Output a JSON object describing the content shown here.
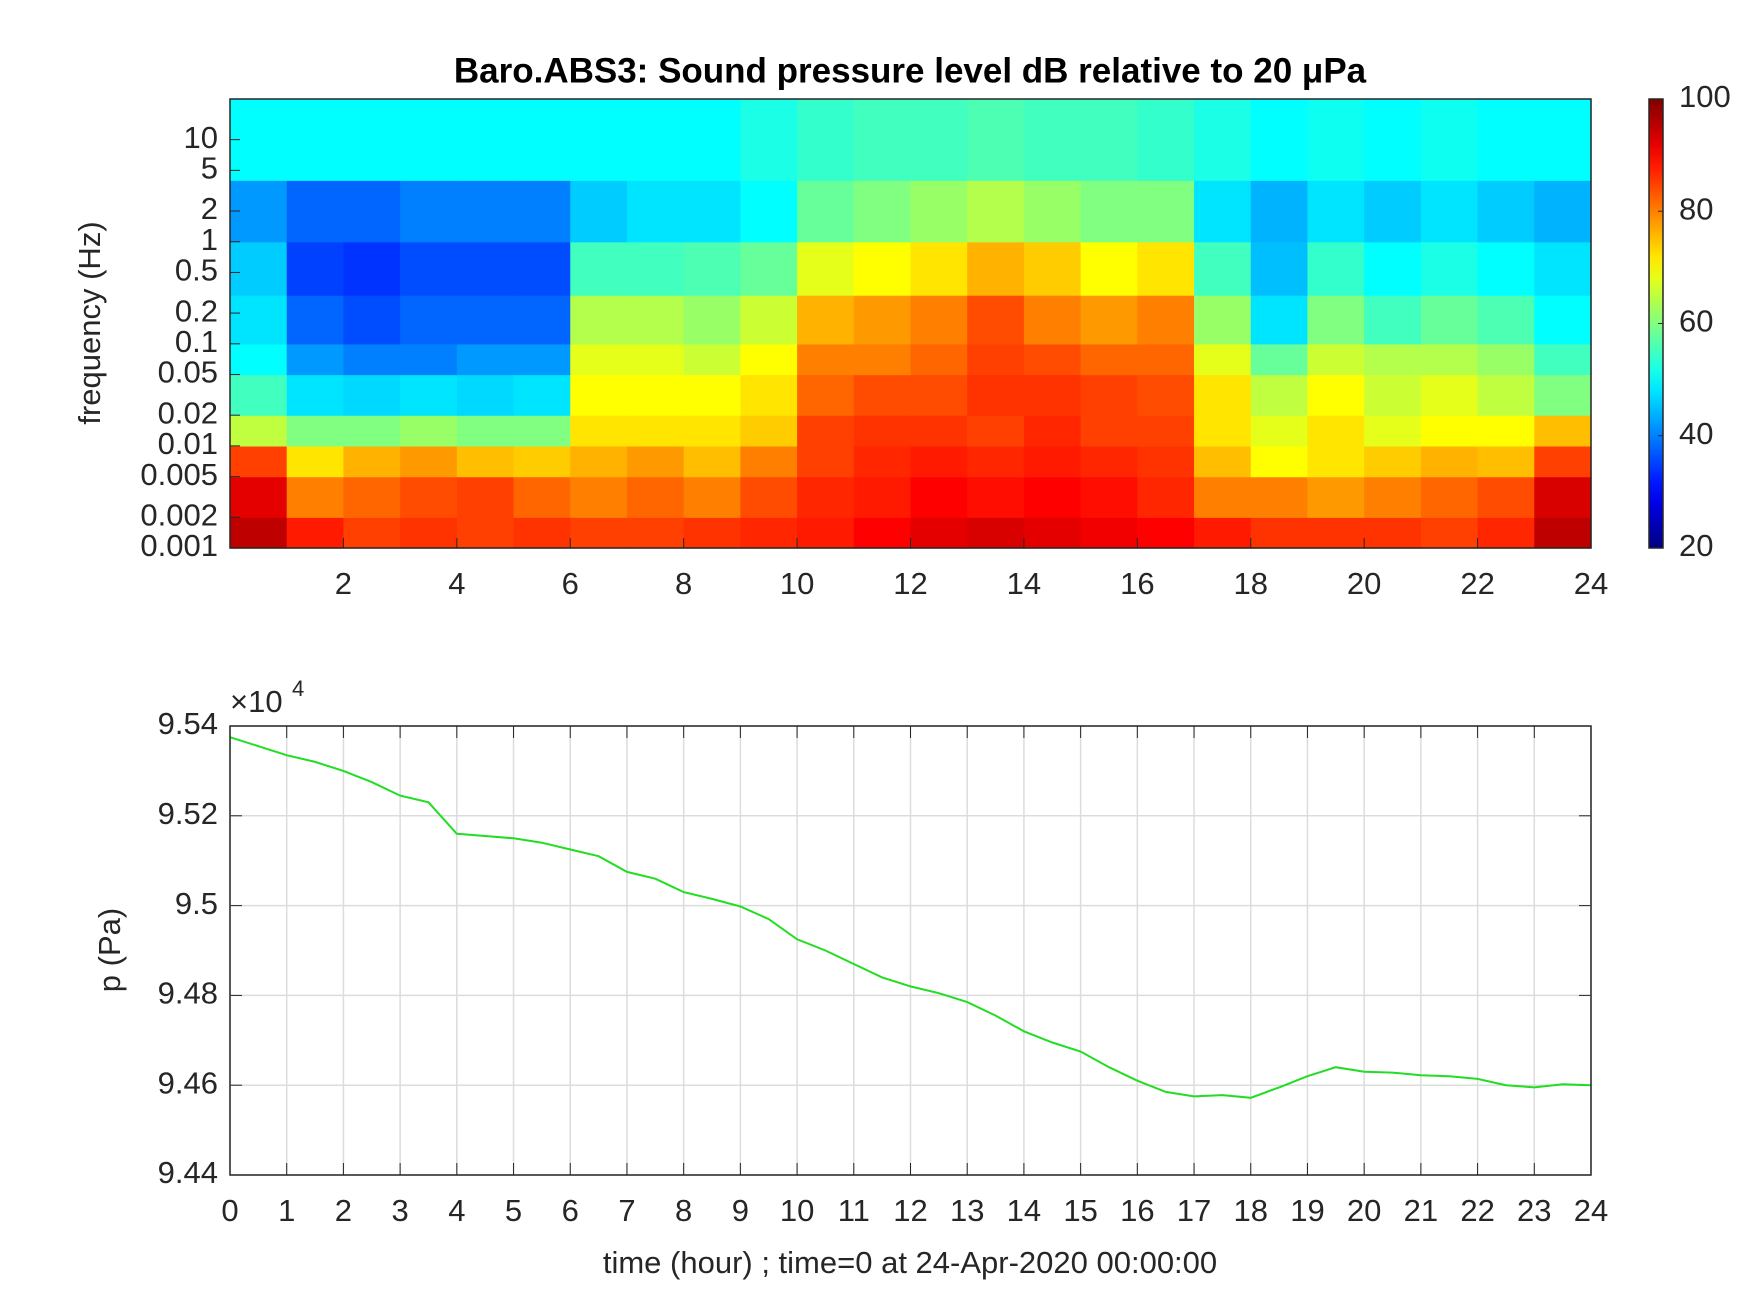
{
  "chart_data": [
    {
      "type": "heatmap",
      "title": "Baro.ABS3: Sound pressure level dB relative to 20 μPa",
      "y_label": "frequency (Hz)",
      "y_log": true,
      "colormap": "jet",
      "xlim": [
        0,
        24
      ],
      "ylim": [
        0.001,
        25
      ],
      "xticks": [
        2,
        4,
        6,
        8,
        10,
        12,
        14,
        16,
        18,
        20,
        22,
        24
      ],
      "yticks": [
        0.001,
        0.002,
        0.005,
        0.01,
        0.02,
        0.05,
        0.1,
        0.2,
        0.5,
        1,
        2,
        5,
        10
      ],
      "x_edges": [
        0,
        1,
        2,
        3,
        4,
        5,
        6,
        7,
        8,
        9,
        10,
        11,
        12,
        13,
        14,
        15,
        16,
        17,
        18,
        19,
        20,
        21,
        22,
        23,
        24
      ],
      "y_edges": [
        0.001,
        0.002,
        0.005,
        0.01,
        0.02,
        0.05,
        0.1,
        0.3,
        1,
        4,
        25
      ],
      "z": [
        [
          95,
          88,
          85,
          86,
          85,
          86,
          85,
          85,
          86,
          87,
          88,
          90,
          92,
          93,
          92,
          91,
          90,
          88,
          86,
          86,
          86,
          85,
          87,
          95
        ],
        [
          92,
          80,
          82,
          84,
          85,
          82,
          80,
          82,
          80,
          84,
          87,
          88,
          90,
          89,
          90,
          89,
          87,
          80,
          80,
          78,
          80,
          82,
          84,
          93
        ],
        [
          85,
          72,
          76,
          78,
          75,
          74,
          76,
          78,
          75,
          80,
          85,
          87,
          88,
          87,
          88,
          87,
          86,
          75,
          70,
          72,
          74,
          76,
          75,
          85
        ],
        [
          65,
          60,
          60,
          62,
          60,
          60,
          72,
          72,
          72,
          74,
          85,
          86,
          86,
          85,
          87,
          85,
          85,
          72,
          68,
          72,
          68,
          70,
          70,
          75
        ],
        [
          55,
          48,
          47,
          48,
          47,
          48,
          70,
          70,
          70,
          72,
          82,
          84,
          84,
          86,
          86,
          85,
          84,
          72,
          65,
          70,
          66,
          68,
          65,
          60
        ],
        [
          50,
          42,
          40,
          40,
          42,
          42,
          68,
          68,
          66,
          70,
          80,
          80,
          82,
          85,
          84,
          82,
          82,
          68,
          58,
          66,
          64,
          64,
          62,
          55
        ],
        [
          48,
          38,
          36,
          38,
          38,
          38,
          64,
          64,
          62,
          66,
          76,
          78,
          80,
          84,
          80,
          78,
          80,
          62,
          48,
          60,
          55,
          58,
          56,
          50
        ],
        [
          46,
          35,
          34,
          36,
          36,
          36,
          55,
          55,
          56,
          58,
          68,
          70,
          72,
          76,
          74,
          70,
          72,
          55,
          45,
          54,
          50,
          52,
          50,
          48
        ],
        [
          42,
          38,
          38,
          40,
          40,
          40,
          46,
          48,
          48,
          50,
          58,
          60,
          62,
          64,
          62,
          60,
          60,
          48,
          44,
          48,
          46,
          48,
          46,
          44
        ],
        [
          50,
          50,
          50,
          50,
          50,
          50,
          50,
          50,
          50,
          52,
          54,
          55,
          55,
          56,
          55,
          55,
          54,
          52,
          50,
          51,
          50,
          51,
          50,
          50
        ]
      ],
      "colorbar": {
        "lim": [
          20,
          100
        ],
        "ticks": [
          20,
          40,
          60,
          80,
          100
        ]
      }
    },
    {
      "type": "line",
      "x_label": "time (hour) ; time=0 at 24-Apr-2020 00:00:00",
      "y_label": "p (Pa)",
      "axis_multiplier": {
        "base": "×10",
        "exponent": "4"
      },
      "color": "#22dd22",
      "grid": true,
      "xlim": [
        0,
        24
      ],
      "ylim": [
        94400,
        95400
      ],
      "xticks": [
        0,
        1,
        2,
        3,
        4,
        5,
        6,
        7,
        8,
        9,
        10,
        11,
        12,
        13,
        14,
        15,
        16,
        17,
        18,
        19,
        20,
        21,
        22,
        23,
        24
      ],
      "yticks": [
        {
          "value": 94400,
          "label": "9.44"
        },
        {
          "value": 94600,
          "label": "9.46"
        },
        {
          "value": 94800,
          "label": "9.48"
        },
        {
          "value": 95000,
          "label": "9.5"
        },
        {
          "value": 95200,
          "label": "9.52"
        },
        {
          "value": 95400,
          "label": "9.54"
        }
      ],
      "x": [
        0,
        0.5,
        1,
        1.5,
        2,
        2.5,
        3,
        3.5,
        4,
        4.5,
        5,
        5.5,
        6,
        6.5,
        7,
        7.5,
        8,
        8.5,
        9,
        9.5,
        10,
        10.5,
        11,
        11.5,
        12,
        12.5,
        13,
        13.5,
        14,
        14.5,
        15,
        15.5,
        16,
        16.5,
        17,
        17.5,
        18,
        18.5,
        19,
        19.5,
        20,
        20.5,
        21,
        21.5,
        22,
        22.5,
        23,
        23.5,
        24
      ],
      "values": [
        95375,
        95355,
        95335,
        95320,
        95300,
        95275,
        95245,
        95230,
        95160,
        95155,
        95150,
        95140,
        95125,
        95110,
        95075,
        95060,
        95030,
        95015,
        94998,
        94970,
        94925,
        94900,
        94870,
        94840,
        94820,
        94805,
        94785,
        94755,
        94720,
        94695,
        94675,
        94640,
        94610,
        94585,
        94575,
        94578,
        94572,
        94595,
        94620,
        94640,
        94630,
        94628,
        94622,
        94620,
        94614,
        94600,
        94595,
        94602,
        94600
      ]
    }
  ]
}
